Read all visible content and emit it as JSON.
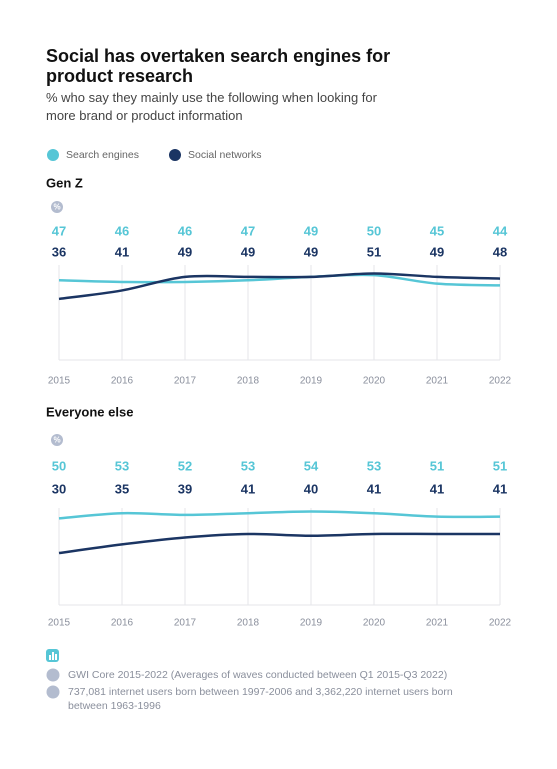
{
  "header": {
    "title": "Social has overtaken search engines for product research",
    "subtitle": "% who say they mainly use the following when looking for more brand or product information"
  },
  "chart_data": [
    {
      "type": "line",
      "title": "Gen Z",
      "unit": "%",
      "categories": [
        "2015",
        "2016",
        "2017",
        "2018",
        "2019",
        "2020",
        "2021",
        "2022"
      ],
      "ylim": [
        0,
        56
      ],
      "series": [
        {
          "name": "Search engines",
          "color": "#56c6d6",
          "values": [
            47,
            46,
            46,
            47,
            49,
            50,
            45,
            44
          ]
        },
        {
          "name": "Social networks",
          "color": "#1b3563",
          "values": [
            36,
            41,
            49,
            49,
            49,
            51,
            49,
            48
          ]
        }
      ]
    },
    {
      "type": "line",
      "title": "Everyone else",
      "unit": "%",
      "categories": [
        "2015",
        "2016",
        "2017",
        "2018",
        "2019",
        "2020",
        "2021",
        "2022"
      ],
      "ylim": [
        0,
        56
      ],
      "series": [
        {
          "color": "#56c6d6",
          "values": [
            50,
            53,
            52,
            53,
            54,
            53,
            51,
            51
          ]
        },
        {
          "color": "#1b3563",
          "values": [
            30,
            35,
            39,
            41,
            40,
            41,
            41,
            41
          ]
        }
      ]
    }
  ],
  "notes": [
    "GWI Core 2015-2022 (Averages of waves conducted between Q1 2015-Q3 2022)",
    "737,081 internet users born between 1997-2006 and 3,362,220 internet users born between 1963-1996"
  ]
}
